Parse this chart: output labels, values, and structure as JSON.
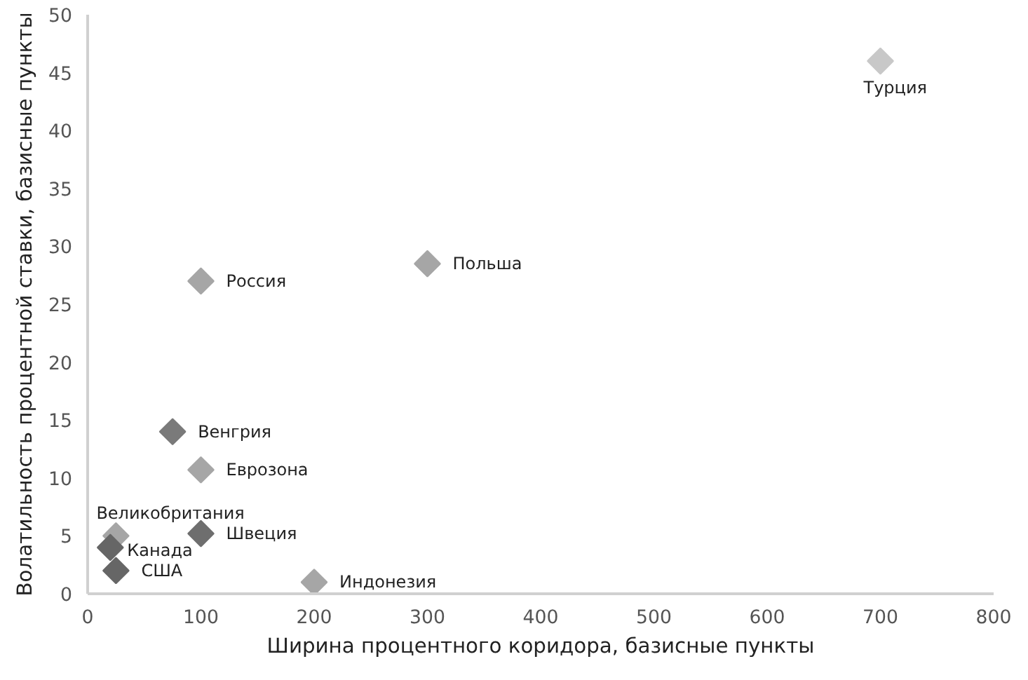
{
  "chart_data": {
    "type": "scatter",
    "xlabel": "Ширина процентного коридора, базисные пункты",
    "ylabel": "Волатильность процентной ставки, базисные пункты",
    "x": [
      700,
      300,
      100,
      75,
      100,
      25,
      100,
      20,
      25,
      200
    ],
    "values": [
      46,
      28.5,
      27,
      14,
      10.7,
      5,
      5.2,
      4,
      2,
      1
    ],
    "colors": [
      "#c8c8c8",
      "#a6a6a6",
      "#a6a6a6",
      "#7a7a7a",
      "#a6a6a6",
      "#a6a6a6",
      "#6e6e6e",
      "#666666",
      "#666666",
      "#a6a6a6"
    ],
    "marker": "diamond",
    "grid": false,
    "xlim": [
      0,
      800
    ],
    "xticks": [
      0,
      100,
      200,
      300,
      400,
      500,
      600,
      700,
      800
    ],
    "ylim": [
      0,
      50
    ],
    "yticks": [
      0,
      5,
      10,
      15,
      20,
      25,
      30,
      35,
      40,
      45,
      50
    ],
    "annotations": [
      {
        "text": "Турция",
        "x": 700,
        "y": 46
      },
      {
        "text": "Польша",
        "x": 300,
        "y": 28.5
      },
      {
        "text": "Россия",
        "x": 100,
        "y": 27
      },
      {
        "text": "Венгрия",
        "x": 75,
        "y": 14
      },
      {
        "text": "Еврозона",
        "x": 100,
        "y": 10.7
      },
      {
        "text": "Великобритания",
        "x": 25,
        "y": 5
      },
      {
        "text": "Швеция",
        "x": 100,
        "y": 5.2
      },
      {
        "text": "Канада",
        "x": 20,
        "y": 4
      },
      {
        "text": "США",
        "x": 25,
        "y": 2
      },
      {
        "text": "Индонезия",
        "x": 200,
        "y": 1
      }
    ]
  }
}
